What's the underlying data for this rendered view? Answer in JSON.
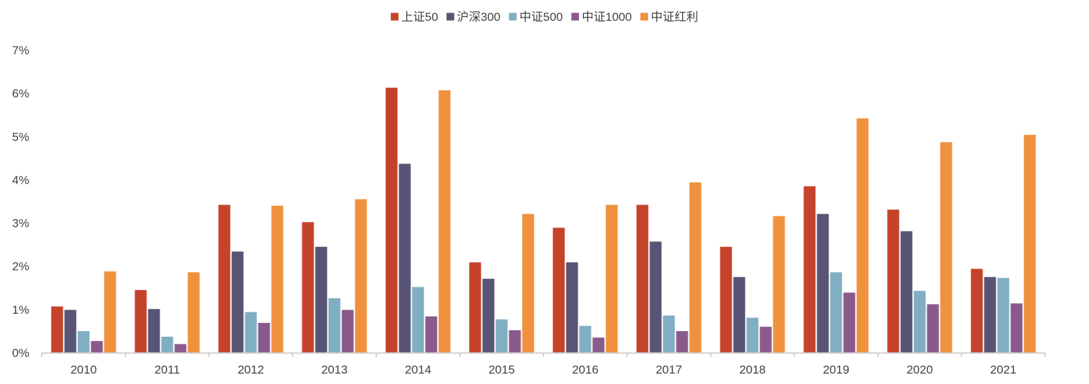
{
  "chart_data": {
    "type": "bar",
    "categories": [
      "2010",
      "2011",
      "2012",
      "2013",
      "2014",
      "2015",
      "2016",
      "2017",
      "2018",
      "2019",
      "2020",
      "2021"
    ],
    "series": [
      {
        "name": "上证50",
        "color": "#C5432A",
        "values": [
          1.07,
          1.45,
          3.42,
          3.02,
          6.13,
          2.09,
          2.89,
          3.42,
          2.45,
          3.85,
          3.31,
          1.94
        ]
      },
      {
        "name": "沪深300",
        "color": "#575475",
        "values": [
          0.99,
          1.01,
          2.34,
          2.45,
          4.37,
          1.71,
          2.09,
          2.57,
          1.75,
          3.21,
          2.81,
          1.75
        ]
      },
      {
        "name": "中证500",
        "color": "#80AEC2",
        "values": [
          0.5,
          0.37,
          0.94,
          1.26,
          1.52,
          0.77,
          0.62,
          0.86,
          0.81,
          1.86,
          1.43,
          1.73
        ]
      },
      {
        "name": "中证1000",
        "color": "#8B5A8C",
        "values": [
          0.27,
          0.2,
          0.69,
          0.99,
          0.84,
          0.52,
          0.35,
          0.5,
          0.6,
          1.39,
          1.12,
          1.14
        ]
      },
      {
        "name": "中证红利",
        "color": "#F0913D",
        "values": [
          1.88,
          1.86,
          3.4,
          3.55,
          6.07,
          3.21,
          3.42,
          3.94,
          3.16,
          5.42,
          4.87,
          5.04
        ]
      }
    ],
    "yticks": [
      "0%",
      "1%",
      "2%",
      "3%",
      "4%",
      "5%",
      "6%",
      "7%"
    ],
    "ylim": [
      0,
      7
    ],
    "legend_position": "top-center",
    "grid": false
  }
}
